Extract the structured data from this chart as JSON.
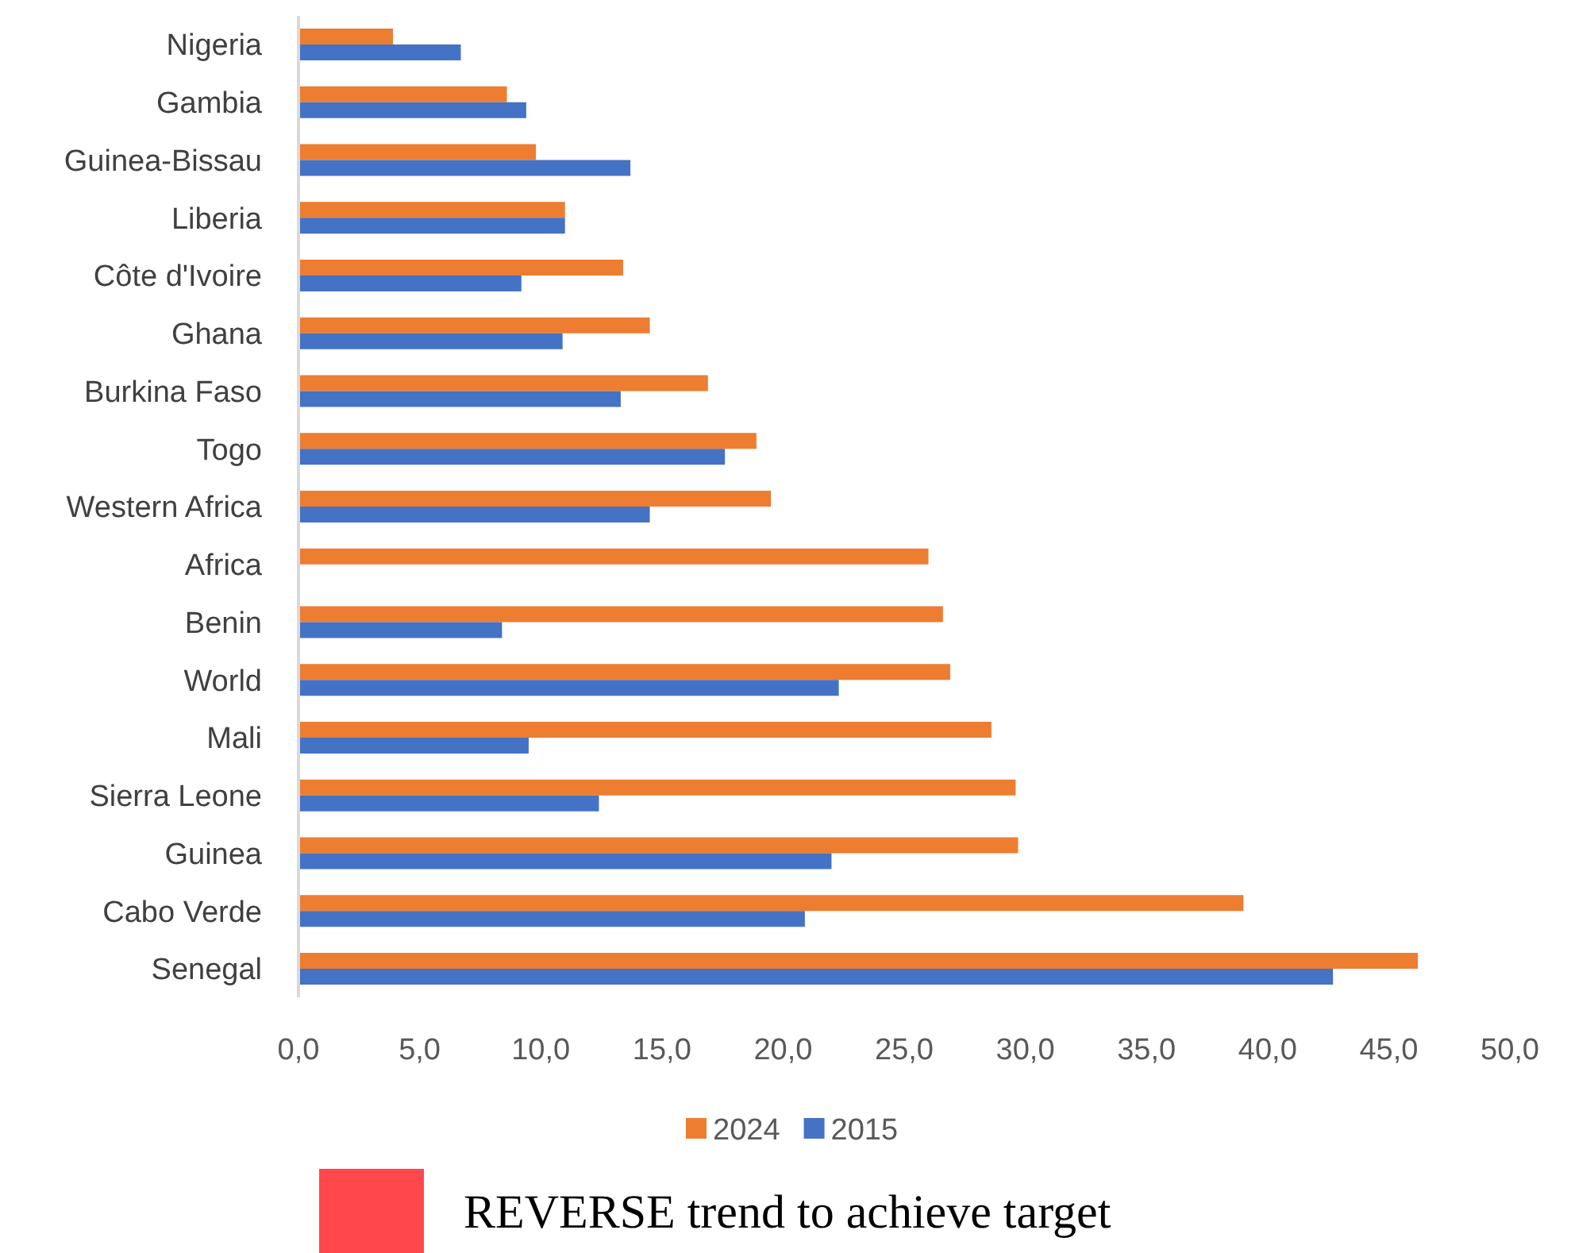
{
  "chart_data": {
    "type": "bar",
    "orientation": "horizontal",
    "categories": [
      "Nigeria",
      "Gambia",
      "Guinea-Bissau",
      "Liberia",
      "Côte d'Ivoire",
      "Ghana",
      "Burkina Faso",
      "Togo",
      "Western Africa",
      "Africa",
      "Benin",
      "World",
      "Mali",
      "Sierra Leone",
      "Guinea",
      "Cabo Verde",
      "Senegal"
    ],
    "series": [
      {
        "name": "2024",
        "color": "#ed7d31",
        "values": [
          3.9,
          8.6,
          9.8,
          11.0,
          13.4,
          14.5,
          16.9,
          18.9,
          19.5,
          26.0,
          26.6,
          26.9,
          28.6,
          29.6,
          29.7,
          39.0,
          46.2
        ]
      },
      {
        "name": "2015",
        "color": "#4472c4",
        "values": [
          6.7,
          9.4,
          13.7,
          11.0,
          9.2,
          10.9,
          13.3,
          17.6,
          14.5,
          null,
          8.4,
          22.3,
          9.5,
          12.4,
          22.0,
          20.9,
          42.7
        ]
      }
    ],
    "xlim": [
      0,
      50
    ],
    "xticks": [
      {
        "value": 0,
        "label": "0,0"
      },
      {
        "value": 5,
        "label": "5,0"
      },
      {
        "value": 10,
        "label": "10,0"
      },
      {
        "value": 15,
        "label": "15,0"
      },
      {
        "value": 20,
        "label": "20,0"
      },
      {
        "value": 25,
        "label": "25,0"
      },
      {
        "value": 30,
        "label": "30,0"
      },
      {
        "value": 35,
        "label": "35,0"
      },
      {
        "value": 40,
        "label": "40,0"
      },
      {
        "value": 45,
        "label": "45,0"
      },
      {
        "value": 50,
        "label": "50,0"
      }
    ],
    "grid": false,
    "legend": "bottom",
    "annotations": [
      "REVERSE trend to achieve target"
    ]
  }
}
